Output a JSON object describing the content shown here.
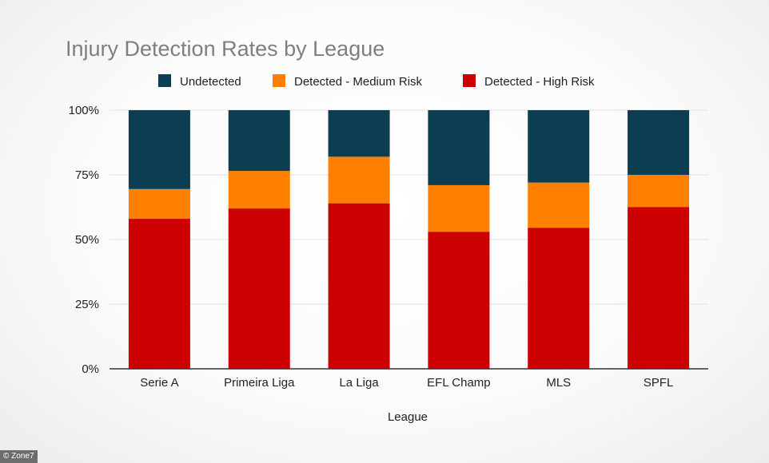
{
  "credit": "© Zone7",
  "chart_data": {
    "type": "bar",
    "stacked": true,
    "title": "Injury Detection Rates by League",
    "xlabel": "League",
    "ylabel": "",
    "ylim": [
      0,
      100
    ],
    "yticks": [
      "0%",
      "25%",
      "50%",
      "75%",
      "100%"
    ],
    "grid": true,
    "legend_position": "top",
    "categories": [
      "Serie A",
      "Primeira Liga",
      "La Liga",
      "EFL Champ",
      "MLS",
      "SPFL"
    ],
    "series": [
      {
        "name": "Detected - High Risk",
        "color": "#cc0000",
        "values": [
          58,
          62,
          64,
          53,
          54.5,
          62.5
        ]
      },
      {
        "name": "Detected - Medium Risk",
        "color": "#ff7f00",
        "values": [
          11.5,
          14.5,
          18,
          18,
          17.5,
          12.5
        ]
      },
      {
        "name": "Undetected",
        "color": "#0d3d50",
        "values": [
          30.5,
          23.5,
          18,
          29,
          28,
          25
        ]
      }
    ],
    "legend_order": [
      "Undetected",
      "Detected - Medium Risk",
      "Detected - High Risk"
    ]
  }
}
